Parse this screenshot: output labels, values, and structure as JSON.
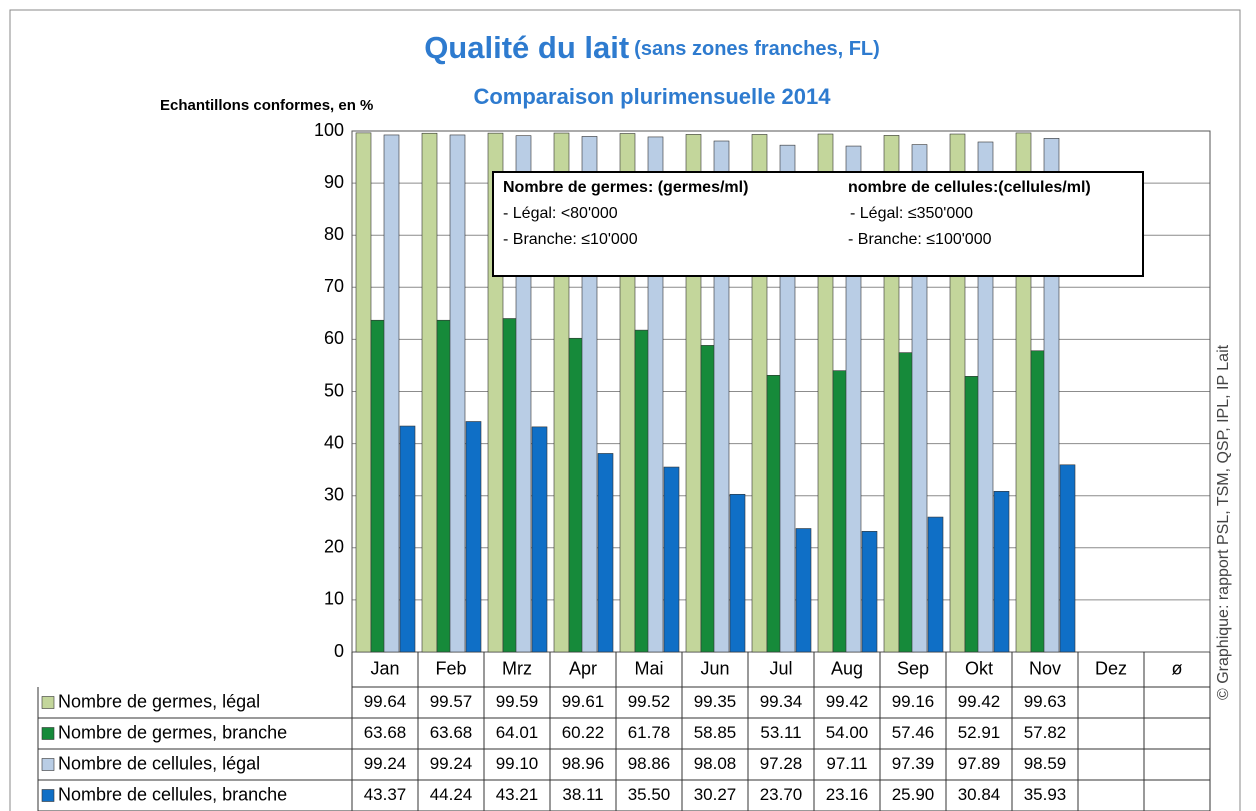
{
  "chart_data": {
    "type": "bar",
    "title": "Qualité du lait",
    "title_note": "(sans zones franches, FL)",
    "subtitle": "Comparaison plurimensuelle 2014",
    "y_label": "Echantillons conformes, en %",
    "credit": "© Graphique: rapport PSL, TSM, QSP, IPL, IP Lait",
    "annotations": [
      "Nombre de germes: (germes/ml)",
      "- Légal: <80'000",
      "- Branche: ≤10'000",
      "nombre de cellules:(cellules/ml)",
      "- Légal: ≤350'000",
      "- Branche: ≤100'000"
    ],
    "categories": [
      "Jan",
      "Feb",
      "Mrz",
      "Apr",
      "Mai",
      "Jun",
      "Jul",
      "Aug",
      "Sep",
      "Okt",
      "Nov",
      "Dez",
      "ø"
    ],
    "series": [
      {
        "name": "Nombre de germes, légal",
        "color": "#c3d69b",
        "values": [
          99.64,
          99.57,
          99.59,
          99.61,
          99.52,
          99.35,
          99.34,
          99.42,
          99.16,
          99.42,
          99.63,
          null,
          null
        ],
        "value_labels": [
          "99.64",
          "99.57",
          "99.59",
          "99.61",
          "99.52",
          "99.35",
          "99.34",
          "99.42",
          "99.16",
          "99.42",
          "99.63",
          null,
          null
        ]
      },
      {
        "name": "Nombre de germes, branche",
        "color": "#168a3a",
        "values": [
          63.68,
          63.68,
          64.01,
          60.22,
          61.78,
          58.85,
          53.11,
          54.0,
          57.46,
          52.91,
          57.82,
          null,
          null
        ],
        "value_labels": [
          "63.68",
          "63.68",
          "64.01",
          "60.22",
          "61.78",
          "58.85",
          "53.11",
          "54.00",
          "57.46",
          "52.91",
          "57.82",
          null,
          null
        ]
      },
      {
        "name": "Nombre de cellules, légal",
        "color": "#b9cde5",
        "values": [
          99.24,
          99.24,
          99.1,
          98.96,
          98.86,
          98.08,
          97.28,
          97.11,
          97.39,
          97.89,
          98.59,
          null,
          null
        ],
        "value_labels": [
          "99.24",
          "99.24",
          "99.10",
          "98.96",
          "98.86",
          "98.08",
          "97.28",
          "97.11",
          "97.39",
          "97.89",
          "98.59",
          null,
          null
        ]
      },
      {
        "name": "Nombre de cellules, branche",
        "color": "#0f6fc6",
        "values": [
          43.37,
          44.24,
          43.21,
          38.11,
          35.5,
          30.27,
          23.7,
          23.16,
          25.9,
          30.84,
          35.93,
          null,
          null
        ],
        "value_labels": [
          "43.37",
          "44.24",
          "43.21",
          "38.11",
          "35.50",
          "30.27",
          "23.70",
          "23.16",
          "25.90",
          "30.84",
          "35.93",
          null,
          null
        ]
      }
    ],
    "ylim": [
      0,
      100
    ],
    "yticks": [
      0,
      10,
      20,
      30,
      40,
      50,
      60,
      70,
      80,
      90,
      100
    ],
    "grid": true
  }
}
